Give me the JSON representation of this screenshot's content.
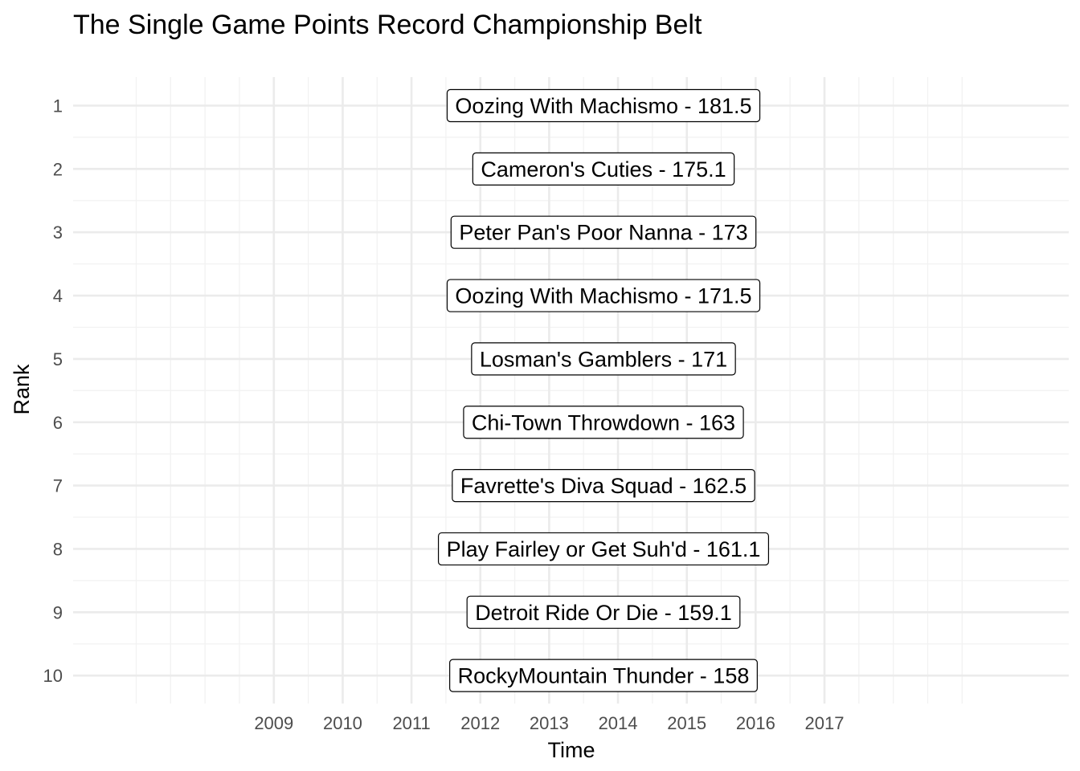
{
  "chart_data": {
    "type": "table",
    "title": "The Single Game Points Record Championship Belt",
    "xlabel": "Time",
    "ylabel": "Rank",
    "x_ticks": [
      "2009",
      "2010",
      "2011",
      "2012",
      "2013",
      "2014",
      "2015",
      "2016",
      "2017"
    ],
    "y_ticks": [
      "1",
      "2",
      "3",
      "4",
      "5",
      "6",
      "7",
      "8",
      "9",
      "10"
    ],
    "grid": true,
    "legend": "none",
    "records": [
      {
        "rank": 1,
        "team": "Oozing With Machismo",
        "points": 181.5,
        "label": "Oozing With Machismo - 181.5"
      },
      {
        "rank": 2,
        "team": "Cameron's Cuties",
        "points": 175.1,
        "label": "Cameron's Cuties - 175.1"
      },
      {
        "rank": 3,
        "team": "Peter Pan's Poor Nanna",
        "points": 173,
        "label": "Peter Pan's Poor Nanna - 173"
      },
      {
        "rank": 4,
        "team": "Oozing With Machismo",
        "points": 171.5,
        "label": "Oozing With Machismo - 171.5"
      },
      {
        "rank": 5,
        "team": "Losman's Gamblers",
        "points": 171,
        "label": "Losman's Gamblers - 171"
      },
      {
        "rank": 6,
        "team": "Chi-Town Throwdown",
        "points": 163,
        "label": "Chi-Town Throwdown - 163"
      },
      {
        "rank": 7,
        "team": "Favrette's Diva Squad",
        "points": 162.5,
        "label": "Favrette's Diva Squad - 162.5"
      },
      {
        "rank": 8,
        "team": "Play Fairley or Get Suh'd",
        "points": 161.1,
        "label": "Play Fairley or Get Suh'd - 161.1"
      },
      {
        "rank": 9,
        "team": "Detroit Ride Or Die",
        "points": 159.1,
        "label": "Detroit Ride Or Die - 159.1"
      },
      {
        "rank": 10,
        "team": "RockyMountain Thunder",
        "points": 158,
        "label": "RockyMountain Thunder - 158"
      }
    ],
    "colors": {
      "background": "#ffffff",
      "grid_major": "#ebebeb",
      "grid_minor": "#f2f2f2",
      "tick_text": "#4d4d4d",
      "text": "#000000",
      "label_border": "#000000"
    }
  }
}
